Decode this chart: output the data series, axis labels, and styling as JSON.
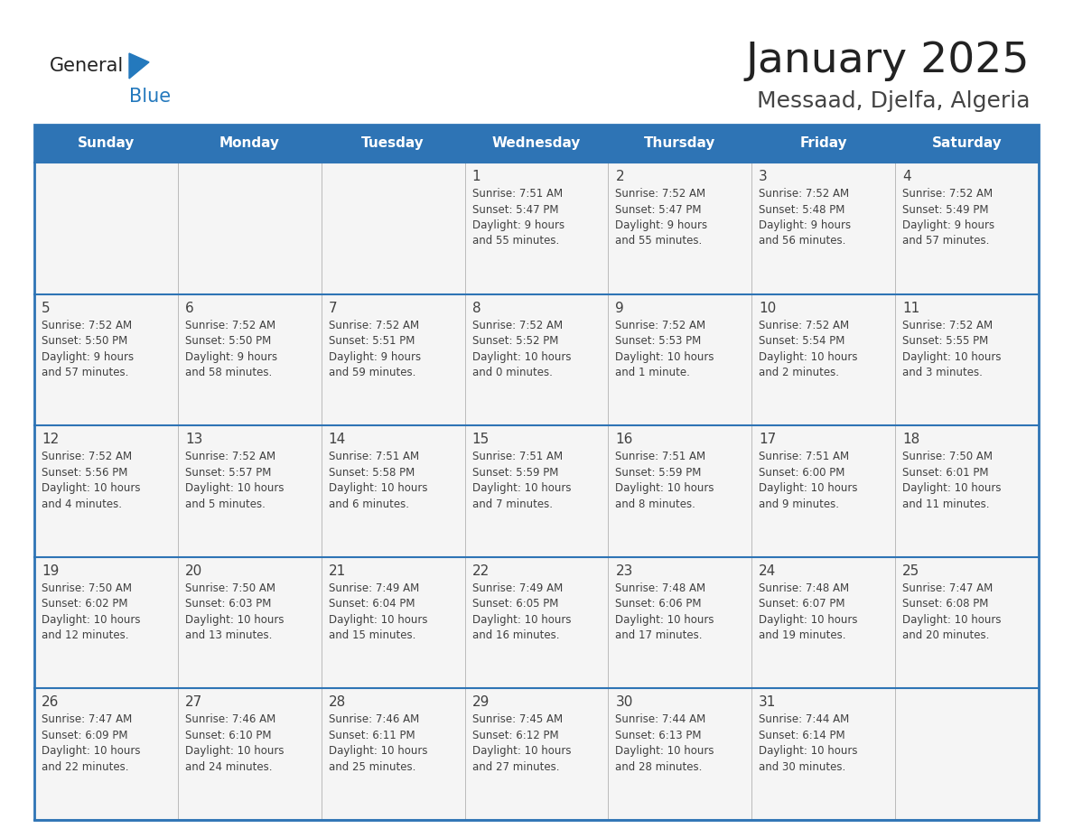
{
  "title": "January 2025",
  "subtitle": "Messaad, Djelfa, Algeria",
  "days_of_week": [
    "Sunday",
    "Monday",
    "Tuesday",
    "Wednesday",
    "Thursday",
    "Friday",
    "Saturday"
  ],
  "header_bg": "#2E74B5",
  "header_text_color": "#FFFFFF",
  "cell_bg": "#F5F5F5",
  "border_color": "#2E74B5",
  "text_color": "#404040",
  "logo_general_color": "#222222",
  "logo_blue_color": "#2479BD",
  "title_color": "#222222",
  "subtitle_color": "#444444",
  "weeks": [
    [
      {
        "day": null,
        "info": null
      },
      {
        "day": null,
        "info": null
      },
      {
        "day": null,
        "info": null
      },
      {
        "day": 1,
        "info": "Sunrise: 7:51 AM\nSunset: 5:47 PM\nDaylight: 9 hours\nand 55 minutes."
      },
      {
        "day": 2,
        "info": "Sunrise: 7:52 AM\nSunset: 5:47 PM\nDaylight: 9 hours\nand 55 minutes."
      },
      {
        "day": 3,
        "info": "Sunrise: 7:52 AM\nSunset: 5:48 PM\nDaylight: 9 hours\nand 56 minutes."
      },
      {
        "day": 4,
        "info": "Sunrise: 7:52 AM\nSunset: 5:49 PM\nDaylight: 9 hours\nand 57 minutes."
      }
    ],
    [
      {
        "day": 5,
        "info": "Sunrise: 7:52 AM\nSunset: 5:50 PM\nDaylight: 9 hours\nand 57 minutes."
      },
      {
        "day": 6,
        "info": "Sunrise: 7:52 AM\nSunset: 5:50 PM\nDaylight: 9 hours\nand 58 minutes."
      },
      {
        "day": 7,
        "info": "Sunrise: 7:52 AM\nSunset: 5:51 PM\nDaylight: 9 hours\nand 59 minutes."
      },
      {
        "day": 8,
        "info": "Sunrise: 7:52 AM\nSunset: 5:52 PM\nDaylight: 10 hours\nand 0 minutes."
      },
      {
        "day": 9,
        "info": "Sunrise: 7:52 AM\nSunset: 5:53 PM\nDaylight: 10 hours\nand 1 minute."
      },
      {
        "day": 10,
        "info": "Sunrise: 7:52 AM\nSunset: 5:54 PM\nDaylight: 10 hours\nand 2 minutes."
      },
      {
        "day": 11,
        "info": "Sunrise: 7:52 AM\nSunset: 5:55 PM\nDaylight: 10 hours\nand 3 minutes."
      }
    ],
    [
      {
        "day": 12,
        "info": "Sunrise: 7:52 AM\nSunset: 5:56 PM\nDaylight: 10 hours\nand 4 minutes."
      },
      {
        "day": 13,
        "info": "Sunrise: 7:52 AM\nSunset: 5:57 PM\nDaylight: 10 hours\nand 5 minutes."
      },
      {
        "day": 14,
        "info": "Sunrise: 7:51 AM\nSunset: 5:58 PM\nDaylight: 10 hours\nand 6 minutes."
      },
      {
        "day": 15,
        "info": "Sunrise: 7:51 AM\nSunset: 5:59 PM\nDaylight: 10 hours\nand 7 minutes."
      },
      {
        "day": 16,
        "info": "Sunrise: 7:51 AM\nSunset: 5:59 PM\nDaylight: 10 hours\nand 8 minutes."
      },
      {
        "day": 17,
        "info": "Sunrise: 7:51 AM\nSunset: 6:00 PM\nDaylight: 10 hours\nand 9 minutes."
      },
      {
        "day": 18,
        "info": "Sunrise: 7:50 AM\nSunset: 6:01 PM\nDaylight: 10 hours\nand 11 minutes."
      }
    ],
    [
      {
        "day": 19,
        "info": "Sunrise: 7:50 AM\nSunset: 6:02 PM\nDaylight: 10 hours\nand 12 minutes."
      },
      {
        "day": 20,
        "info": "Sunrise: 7:50 AM\nSunset: 6:03 PM\nDaylight: 10 hours\nand 13 minutes."
      },
      {
        "day": 21,
        "info": "Sunrise: 7:49 AM\nSunset: 6:04 PM\nDaylight: 10 hours\nand 15 minutes."
      },
      {
        "day": 22,
        "info": "Sunrise: 7:49 AM\nSunset: 6:05 PM\nDaylight: 10 hours\nand 16 minutes."
      },
      {
        "day": 23,
        "info": "Sunrise: 7:48 AM\nSunset: 6:06 PM\nDaylight: 10 hours\nand 17 minutes."
      },
      {
        "day": 24,
        "info": "Sunrise: 7:48 AM\nSunset: 6:07 PM\nDaylight: 10 hours\nand 19 minutes."
      },
      {
        "day": 25,
        "info": "Sunrise: 7:47 AM\nSunset: 6:08 PM\nDaylight: 10 hours\nand 20 minutes."
      }
    ],
    [
      {
        "day": 26,
        "info": "Sunrise: 7:47 AM\nSunset: 6:09 PM\nDaylight: 10 hours\nand 22 minutes."
      },
      {
        "day": 27,
        "info": "Sunrise: 7:46 AM\nSunset: 6:10 PM\nDaylight: 10 hours\nand 24 minutes."
      },
      {
        "day": 28,
        "info": "Sunrise: 7:46 AM\nSunset: 6:11 PM\nDaylight: 10 hours\nand 25 minutes."
      },
      {
        "day": 29,
        "info": "Sunrise: 7:45 AM\nSunset: 6:12 PM\nDaylight: 10 hours\nand 27 minutes."
      },
      {
        "day": 30,
        "info": "Sunrise: 7:44 AM\nSunset: 6:13 PM\nDaylight: 10 hours\nand 28 minutes."
      },
      {
        "day": 31,
        "info": "Sunrise: 7:44 AM\nSunset: 6:14 PM\nDaylight: 10 hours\nand 30 minutes."
      },
      {
        "day": null,
        "info": null
      }
    ]
  ]
}
